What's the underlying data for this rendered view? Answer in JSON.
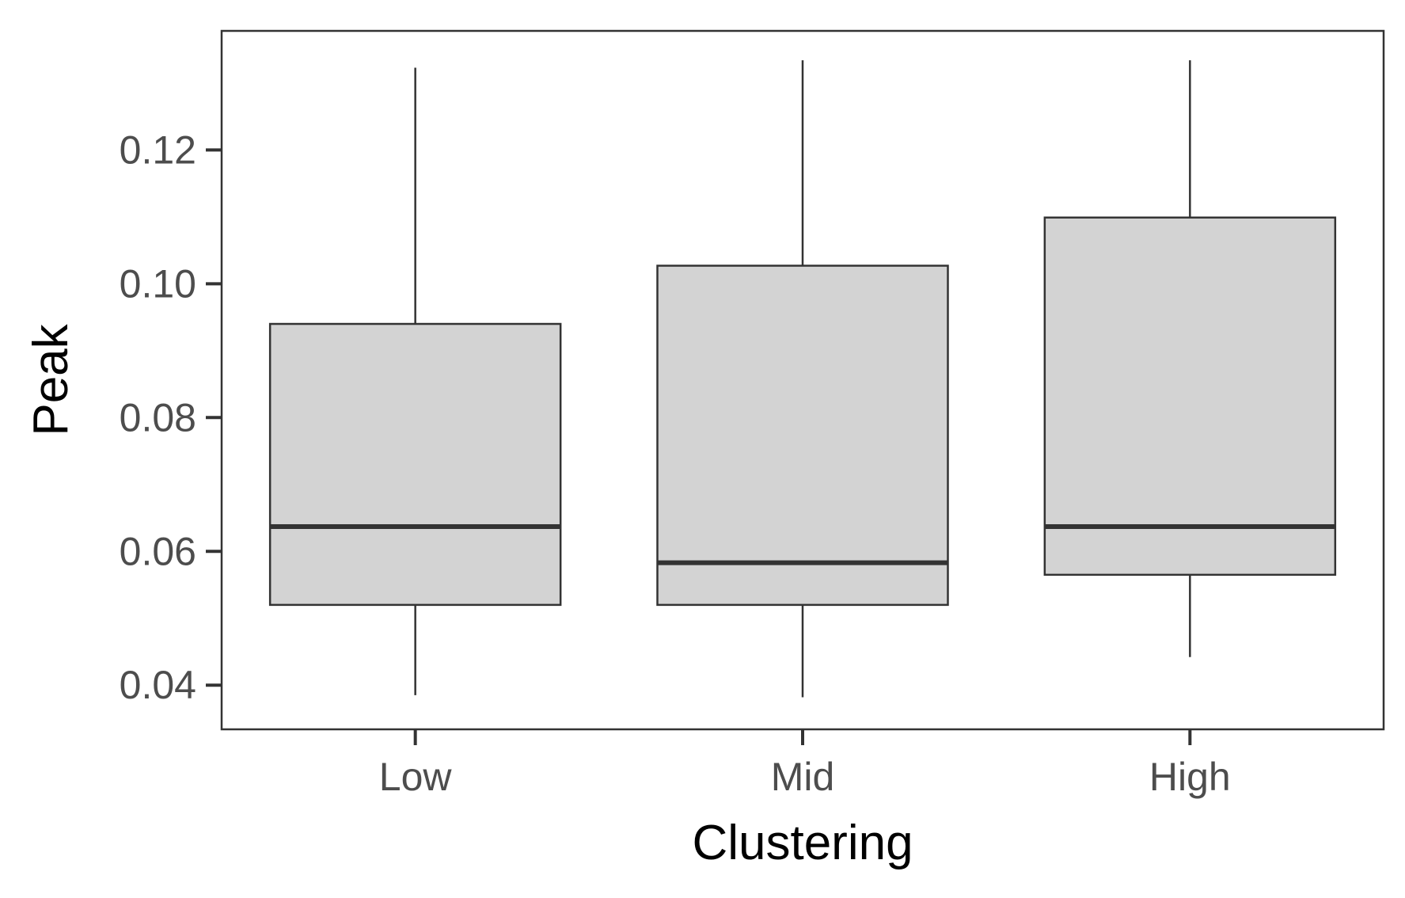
{
  "chart_data": {
    "type": "boxplot",
    "title": "",
    "xlabel": "Clustering",
    "ylabel": "Peak",
    "categories": [
      "Low",
      "Mid",
      "High"
    ],
    "boxes": [
      {
        "category": "Low",
        "min": 0.0385,
        "q1": 0.052,
        "median": 0.0637,
        "q3": 0.094,
        "max": 0.1323
      },
      {
        "category": "Mid",
        "min": 0.0382,
        "q1": 0.052,
        "median": 0.0583,
        "q3": 0.1027,
        "max": 0.1334
      },
      {
        "category": "High",
        "min": 0.0442,
        "q1": 0.0565,
        "median": 0.0637,
        "q3": 0.1099,
        "max": 0.1334
      }
    ],
    "ylim": [
      0.0334,
      0.1378
    ],
    "yticks": [
      {
        "value": 0.04,
        "label": "0.04"
      },
      {
        "value": 0.06,
        "label": "0.06"
      },
      {
        "value": 0.08,
        "label": "0.08"
      },
      {
        "value": 0.1,
        "label": "0.10"
      },
      {
        "value": 0.12,
        "label": "0.12"
      }
    ],
    "grid": false,
    "legend": "none",
    "colors": {
      "box_fill": "#d3d3d3",
      "stroke": "#333333",
      "tick_text": "#4d4d4d",
      "title_text": "#000000"
    }
  }
}
